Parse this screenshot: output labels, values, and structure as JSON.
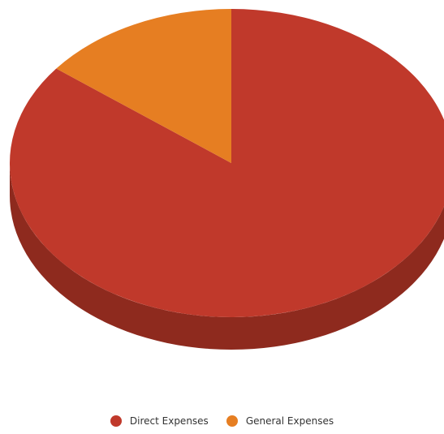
{
  "chart_data": {
    "type": "pie",
    "title": "",
    "style": "3d",
    "legend_position": "bottom",
    "slices": [
      {
        "label": "Direct Expenses",
        "value": 85.5,
        "color": "#C0392B"
      },
      {
        "label": "General Expenses",
        "value": 14.5,
        "color": "#E67E22"
      }
    ]
  },
  "legend": {
    "items": [
      {
        "label": "Direct Expenses",
        "color": "#C0392B"
      },
      {
        "label": "General Expenses",
        "color": "#E67E22"
      }
    ]
  },
  "colors": {
    "side_shade": "#8E2A1E"
  }
}
